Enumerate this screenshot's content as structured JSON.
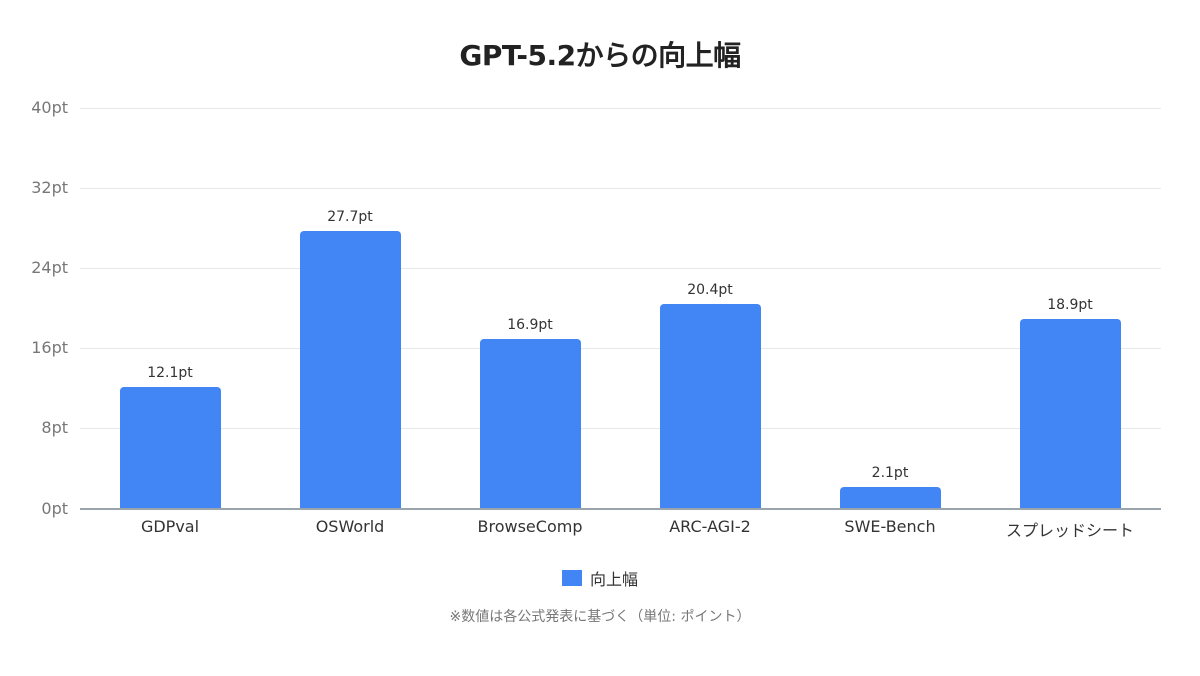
{
  "title": "GPT-5.2からの向上幅",
  "y_axis": {
    "ticks": [
      "40pt",
      "32pt",
      "24pt",
      "16pt",
      "8pt",
      "0pt"
    ]
  },
  "categories": [
    "GDPval",
    "OSWorld",
    "BrowseComp",
    "ARC-AGI-2",
    "SWE-Bench",
    "スプレッドシート"
  ],
  "value_labels": [
    "12.1pt",
    "27.7pt",
    "16.9pt",
    "20.4pt",
    "2.1pt",
    "18.9pt"
  ],
  "legend": {
    "label": "向上幅",
    "color": "#4285f4"
  },
  "note": "※数値は各公式発表に基づく（単位: ポイント）",
  "chart_data": {
    "type": "bar",
    "title": "GPT-5.2からの向上幅",
    "categories": [
      "GDPval",
      "OSWorld",
      "BrowseComp",
      "ARC-AGI-2",
      "SWE-Bench",
      "スプレッドシート"
    ],
    "series": [
      {
        "name": "向上幅",
        "values": [
          12.1,
          27.7,
          16.9,
          20.4,
          2.1,
          18.9
        ],
        "color": "#4285f4"
      }
    ],
    "xlabel": "",
    "ylabel": "",
    "unit": "pt",
    "ylim": [
      0,
      40
    ],
    "yticks": [
      0,
      8,
      16,
      24,
      32,
      40
    ],
    "grid": true,
    "legend_position": "bottom",
    "data_labels": true,
    "annotation": "※数値は各公式発表に基づく（単位: ポイント）"
  }
}
